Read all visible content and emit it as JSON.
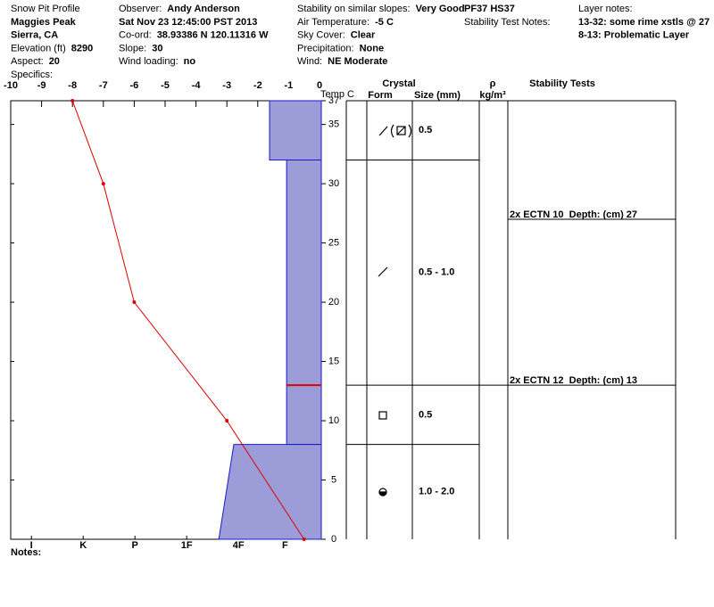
{
  "header": {
    "col1": [
      {
        "value": "Snow Pit Profile"
      },
      {
        "value": "Maggies Peak",
        "bold": true
      },
      {
        "value": "Sierra, CA",
        "bold": true
      },
      {
        "label": "Elevation (ft)",
        "value": "8290"
      },
      {
        "label": "Aspect:",
        "value": "20"
      },
      {
        "value": "Specifics:"
      }
    ],
    "col2": [
      {
        "label": "Observer:",
        "value": "Andy Anderson"
      },
      {
        "value": "Sat Nov 23 12:45:00 PST 2013",
        "bold": true
      },
      {
        "label": "Co-ord:",
        "value": "38.93386 N 120.11316 W"
      },
      {
        "label": "Slope:",
        "value": "30"
      },
      {
        "label": "Wind loading:",
        "value": "no"
      }
    ],
    "col3": [
      {
        "label": "Stability on similar slopes:",
        "value": "Very Good"
      },
      {
        "label": "Air Temperature:",
        "value": "-5 C"
      },
      {
        "label": "Sky Cover:",
        "value": "Clear"
      },
      {
        "label": "Precipitation:",
        "value": "None"
      },
      {
        "label": "Wind:",
        "value": "NE Moderate"
      }
    ],
    "col4": [
      {
        "value": "PF37 HS37",
        "bold": true
      },
      {
        "value": "Stability Test Notes:"
      }
    ],
    "col5": [
      {
        "value": "Layer notes:"
      },
      {
        "value": "13-32: some rime xstls @ 27",
        "bold": true
      },
      {
        "value": "8-13: Problematic Layer",
        "bold": true
      }
    ]
  },
  "chart_data": {
    "type": "snow-profile",
    "y_label": "Temp C",
    "temperature": {
      "x": [
        -8,
        -7,
        -6,
        -3,
        -0.5
      ],
      "y": [
        37,
        30,
        20,
        10,
        0
      ]
    },
    "xlim": [
      -10,
      0
    ],
    "xticks": [
      -10,
      -9,
      -8,
      -7,
      -6,
      -5,
      -4,
      -3,
      -2,
      -1,
      0
    ],
    "ylim": [
      0,
      37
    ],
    "yticks": [
      0,
      5,
      10,
      15,
      20,
      25,
      30,
      35,
      37
    ],
    "hardness_ticks": [
      {
        "value": 5.6,
        "label": "I"
      },
      {
        "value": 4.6,
        "label": "K"
      },
      {
        "value": 3.6,
        "label": "P"
      },
      {
        "value": 2.6,
        "label": "1F"
      },
      {
        "value": 1.6,
        "label": "4F"
      },
      {
        "value": 0.7,
        "label": "F"
      }
    ],
    "layers": [
      {
        "top": 37,
        "bottom": 32,
        "hardness": [
          1.0,
          1.0
        ],
        "size": "0.5"
      },
      {
        "top": 32,
        "bottom": 13,
        "hardness": [
          0.67,
          0.67
        ],
        "size": "0.5 - 1.0"
      },
      {
        "top": 13,
        "bottom": 8,
        "hardness": [
          0.67,
          0.67
        ],
        "size": "0.5"
      },
      {
        "top": 8,
        "bottom": 0,
        "hardness": [
          1.69,
          1.98
        ],
        "size": "1.0 - 2.0"
      }
    ],
    "critical_layer": 13,
    "stability_tests": [
      {
        "label": "2x ECTN 10  Depth: (cm) 27",
        "depth": 27
      },
      {
        "label": "2x ECTN 12  Depth: (cm) 13",
        "depth": 13
      }
    ],
    "table_headers": {
      "crystal": "Crystal",
      "form": "Form",
      "size": "Size (mm)",
      "rho": "ρ",
      "density": "kg/m³",
      "tests": "Stability Tests"
    }
  },
  "notes": "Notes:"
}
